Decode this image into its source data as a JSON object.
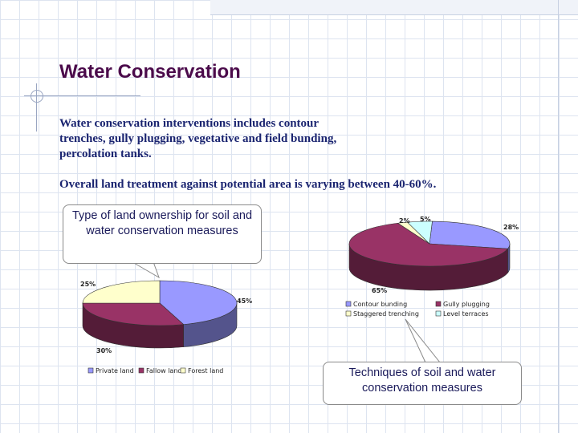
{
  "title": "Water Conservation",
  "body": {
    "line1": "Water conservation interventions includes contour trenches,  gully plugging, vegetative and field bunding, percolation tanks.",
    "line2": "Overall land treatment against potential area is varying between 40-60%."
  },
  "callouts": {
    "ownership": "Type of land ownership for soil and water conservation measures",
    "techniques": "Techniques of soil and water conservation measures"
  },
  "chart_data": [
    {
      "type": "pie",
      "title": "",
      "categories": [
        "Private land",
        "Fallow land",
        "Forest land"
      ],
      "values": [
        45,
        30,
        25
      ],
      "labels": [
        "45%",
        "30%",
        "25%"
      ],
      "colors": [
        "#9999ff",
        "#993366",
        "#ffffcc"
      ],
      "legend": "bottom"
    },
    {
      "type": "pie",
      "title": "",
      "categories": [
        "Contour bunding",
        "Gully plugging",
        "Staggered trenching",
        "Level terraces"
      ],
      "values": [
        28,
        65,
        2,
        5
      ],
      "labels": [
        "28%",
        "65%",
        "2%",
        "5%"
      ],
      "colors": [
        "#9999ff",
        "#993366",
        "#ffffcc",
        "#ccffff"
      ],
      "legend": "bottom"
    }
  ]
}
